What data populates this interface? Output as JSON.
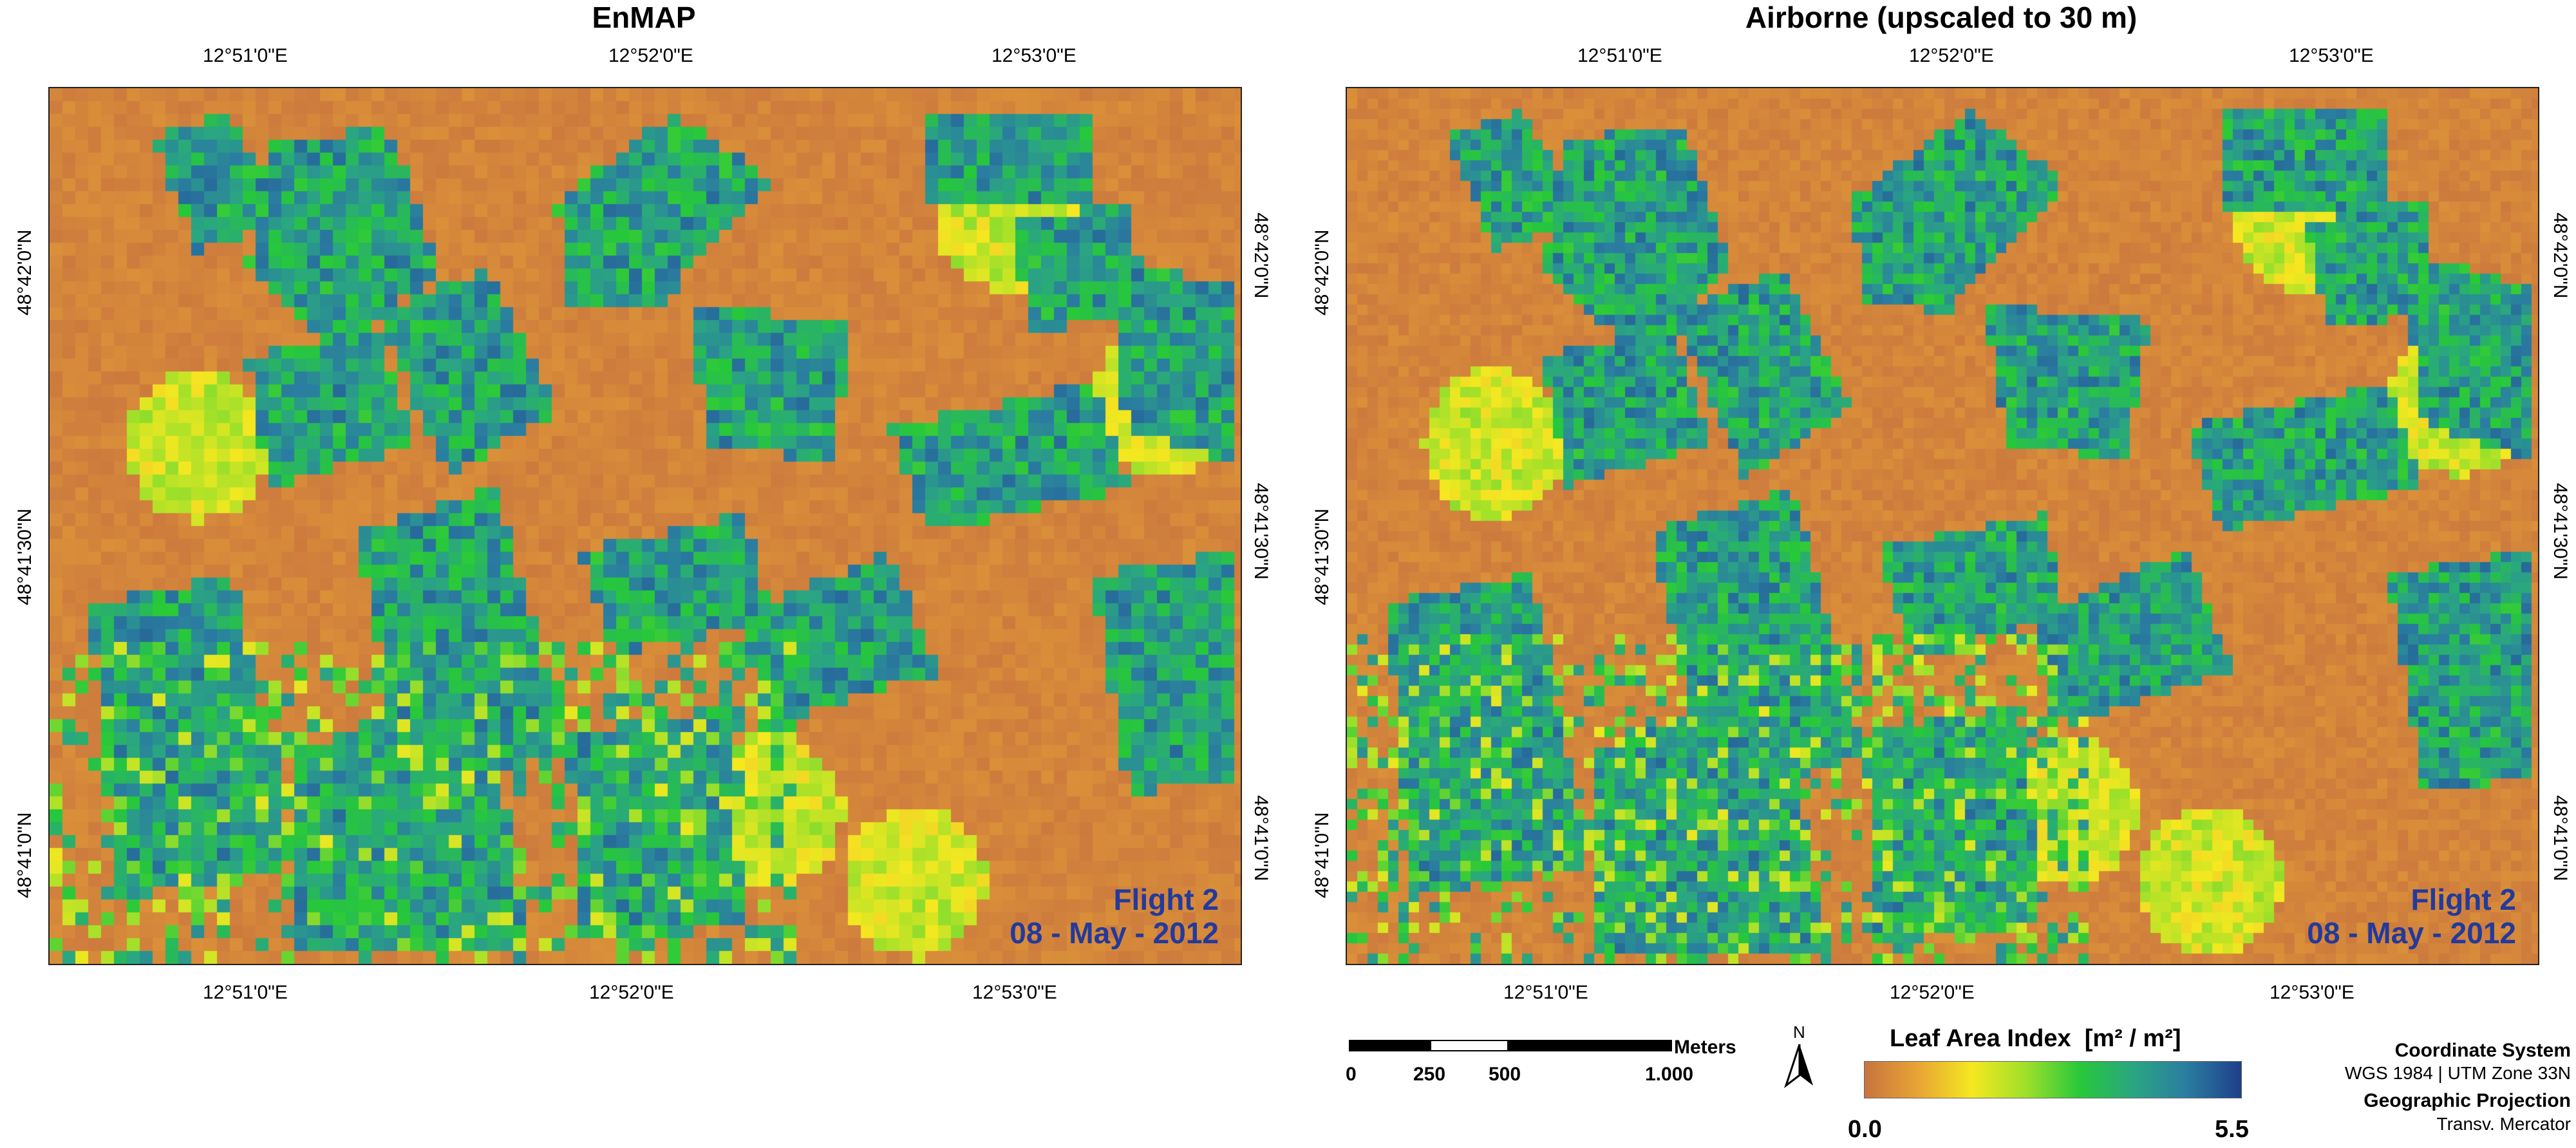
{
  "panels": [
    {
      "title": "EnMAP",
      "stamp_line1": "Flight 2",
      "stamp_line2": "08 - May - 2012",
      "seed": 7
    },
    {
      "title": "Airborne (upscaled to 30 m)",
      "stamp_line1": "Flight 2",
      "stamp_line2": "08 - May - 2012",
      "seed": 11
    }
  ],
  "lon_labels": [
    "12°51'0\"E",
    "12°52'0\"E",
    "12°53'0\"E"
  ],
  "lat_labels": [
    "48°42'0\"N",
    "48°41'30\"N",
    "48°41'0\"N"
  ],
  "scalebar": {
    "unit": "Meters",
    "ticks": [
      "0",
      "250",
      "500",
      "1.000"
    ]
  },
  "north_arrow": {
    "label": "N"
  },
  "legend": {
    "title": "Leaf Area Index  [m² / m²]",
    "min_label": "0.0",
    "max_label": "5.5",
    "colors": [
      "#c8743f",
      "#e8a534",
      "#f5e820",
      "#9ee02a",
      "#27c83a",
      "#2aa582",
      "#2a7ca0",
      "#1f3f8a"
    ]
  },
  "projection_info": {
    "coord_title": "Coordinate System",
    "coord_value": "WGS 1984 | UTM Zone 33N",
    "proj_title": "Geographic Projection",
    "proj_value": "Transv. Mercator"
  }
}
